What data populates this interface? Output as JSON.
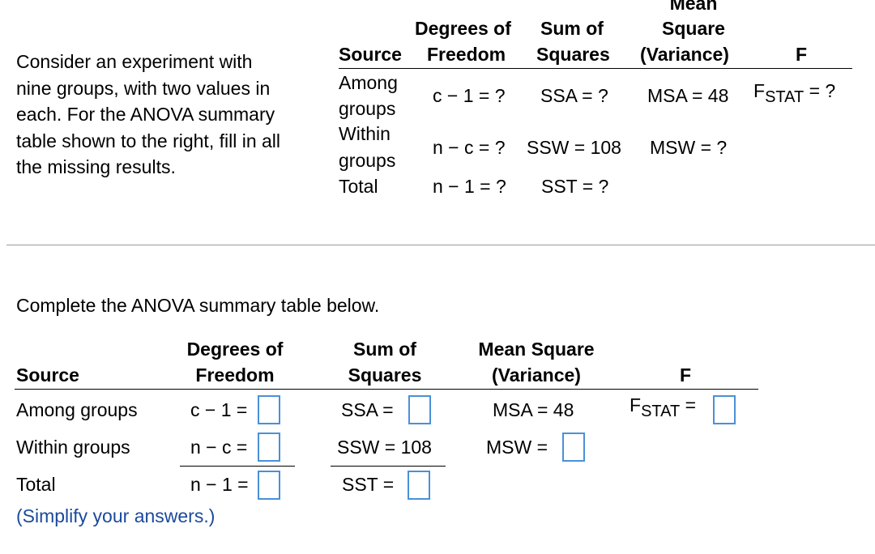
{
  "intro": {
    "line1": "Consider an experiment with",
    "line2": "nine groups, with two values in",
    "line3": "each. For the ANOVA summary",
    "line4": "table shown to the right, fill in all",
    "line5": "the missing results."
  },
  "given_table": {
    "headers": {
      "source": "Source",
      "df_line1": "Degrees of",
      "df_line2": "Freedom",
      "ss_line1": "Sum of",
      "ss_line2": "Squares",
      "ms_line0": "Mean",
      "ms_line1": "Square",
      "ms_line2": "(Variance)",
      "f": "F"
    },
    "rows": {
      "among_line1": "Among",
      "among_line2": "groups",
      "among_df": "c − 1 = ?",
      "among_ss": "SSA = ?",
      "among_ms": "MSA = 48",
      "among_f_base": "F",
      "among_f_sub": "STAT",
      "among_f_rest": " = ?",
      "within_line1": "Within",
      "within_line2": "groups",
      "within_df": "n − c = ?",
      "within_ss": "SSW = 108",
      "within_ms": "MSW = ?",
      "total_label": "Total",
      "total_df": "n − 1 = ?",
      "total_ss": "SST = ?"
    }
  },
  "complete_prompt": "Complete the ANOVA summary table below.",
  "answer_table": {
    "headers": {
      "source": "Source",
      "df_line1": "Degrees of",
      "df_line2": "Freedom",
      "ss_line1": "Sum of",
      "ss_line2": "Squares",
      "ms_line1": "Mean Square",
      "ms_line2": "(Variance)",
      "f": "F"
    },
    "rows": {
      "among_label": "Among groups",
      "among_df": "c − 1 =",
      "among_ss": "SSA =",
      "among_ms": "MSA = 48",
      "among_f_base": "F",
      "among_f_sub": "STAT",
      "among_f_eq": " =",
      "within_label": "Within groups",
      "within_df": "n − c =",
      "within_ss": "SSW = 108",
      "within_ms": "MSW =",
      "total_label": "Total",
      "total_df": "n − 1 =",
      "total_ss": "SST ="
    },
    "note": "(Simplify your answers.)"
  },
  "colors": {
    "answer_box_border": "#4a90d9",
    "note_text": "#1a4a9c",
    "separator": "#9a9a9a"
  }
}
